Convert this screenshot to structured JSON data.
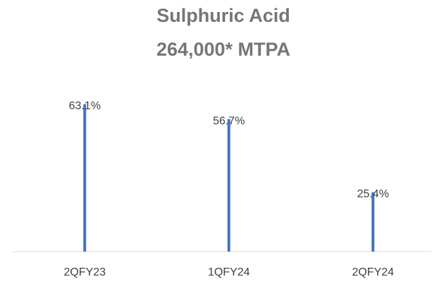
{
  "chart_data": {
    "type": "bar",
    "title": "Sulphuric Acid",
    "subtitle": "264,000* MTPA",
    "categories": [
      "2QFY23",
      "1QFY24",
      "2QFY24"
    ],
    "values": [
      63.1,
      56.7,
      25.4
    ],
    "value_labels": [
      "63.1%",
      "56.7%",
      "25.4%"
    ],
    "color": "#4472c4",
    "ylim": [
      0,
      70
    ]
  }
}
